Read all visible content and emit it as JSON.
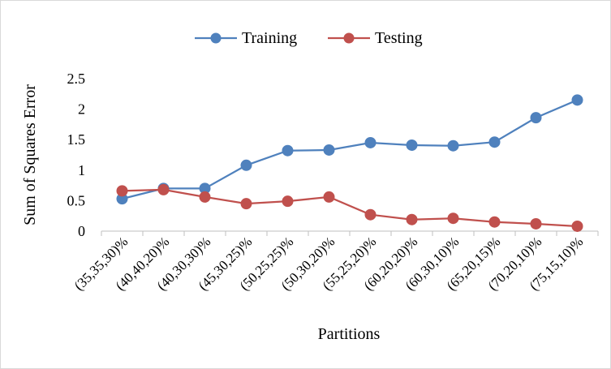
{
  "chart_data": {
    "type": "line",
    "xlabel": "Partitions",
    "ylabel": "Sum of Squares Error",
    "categories": [
      "(35,35,30)%",
      "(40,40,20)%",
      "(40,30,30)%",
      "(45,30,25)%",
      "(50,25,25)%",
      "(50,30,20)%",
      "(55,25,20)%",
      "(60,20,20)%",
      "(60,30,10)%",
      "(65,20,15)%",
      "(70,20,10)%",
      "(75,15,10)%"
    ],
    "series": [
      {
        "name": "Training",
        "color": "#4f81bd",
        "values": [
          0.53,
          0.7,
          0.7,
          1.08,
          1.32,
          1.33,
          1.45,
          1.41,
          1.4,
          1.46,
          1.86,
          2.15
        ]
      },
      {
        "name": "Testing",
        "color": "#c0504d",
        "values": [
          0.66,
          0.68,
          0.56,
          0.45,
          0.49,
          0.56,
          0.27,
          0.19,
          0.21,
          0.15,
          0.12,
          0.08
        ]
      }
    ],
    "ylim": [
      0,
      2.5
    ],
    "yticks": [
      0,
      0.5,
      1,
      1.5,
      2,
      2.5
    ],
    "grid": false,
    "legend": "top"
  }
}
